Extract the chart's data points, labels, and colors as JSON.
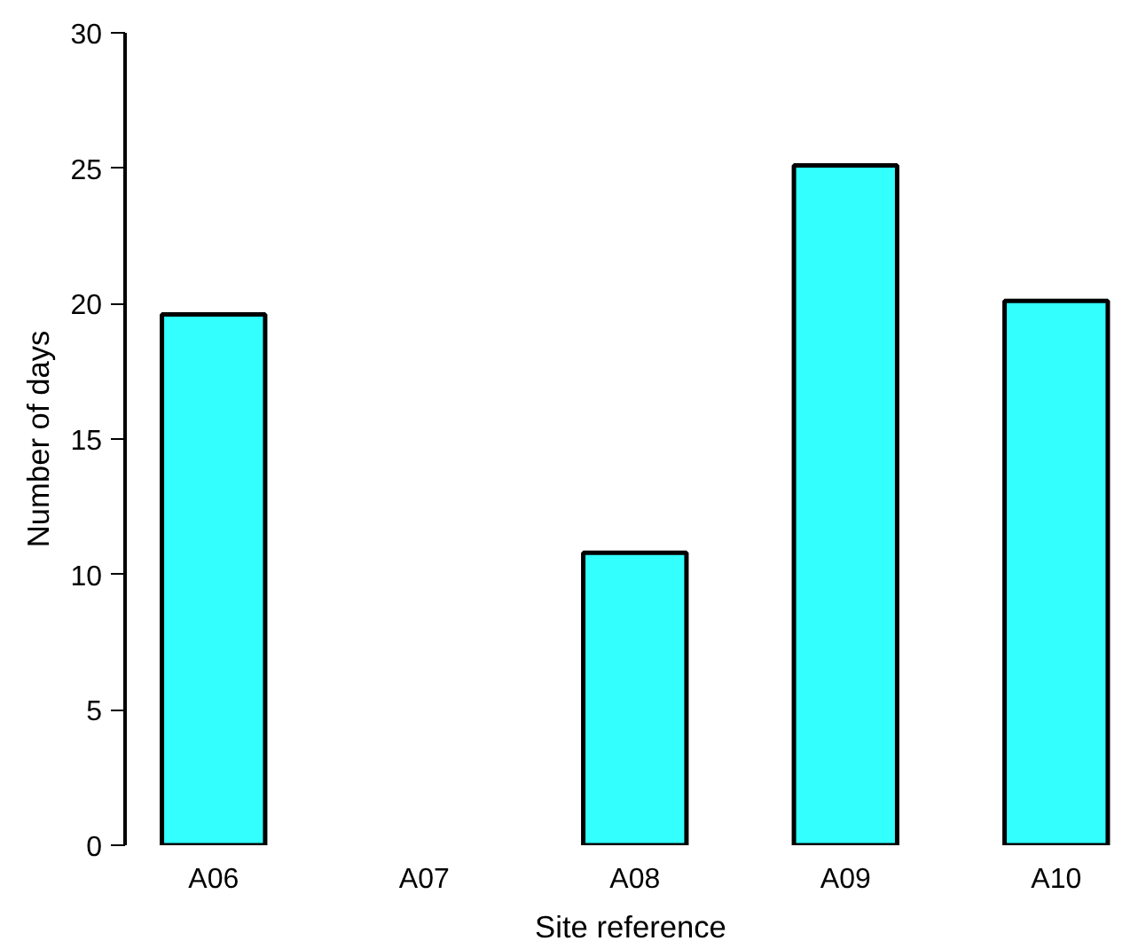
{
  "chart_data": {
    "type": "bar",
    "xlabel": "Site reference",
    "ylabel": "Number of days",
    "categories": [
      "A06",
      "A07",
      "A08",
      "A09",
      "A10"
    ],
    "values": [
      19.6,
      null,
      10.8,
      25.1,
      20.1
    ],
    "color": "#33ffff",
    "ylim": [
      0,
      30
    ],
    "yticks": [
      0,
      5,
      10,
      15,
      20,
      25,
      30
    ],
    "grid": false
  }
}
